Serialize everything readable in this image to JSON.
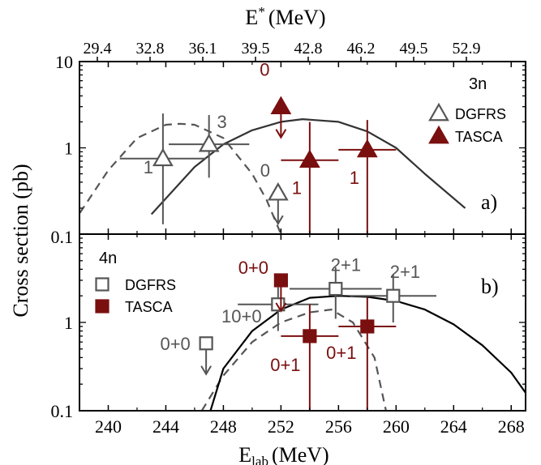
{
  "colors": {
    "axis": "#000000",
    "dgfrs": "#555555",
    "tasca": "#7a0f0f",
    "theory": "#333333",
    "theory_4n": "#000000"
  },
  "chart_data": {
    "type": "scatter",
    "log_y": true,
    "xlabel": "E",
    "xlabel_sub": "lab",
    "xlabel_unit": "(MeV)",
    "x2label": "E",
    "x2label_sup": "*",
    "x2label_unit": "(MeV)",
    "ylabel": "Cross section (pb)",
    "xlim": [
      238,
      269
    ],
    "x_ticks": [
      "240",
      "244",
      "248",
      "252",
      "256",
      "260",
      "264",
      "268"
    ],
    "x2_ticks": [
      "29.4",
      "32.8",
      "36.1",
      "39.5",
      "42.8",
      "46.2",
      "49.5",
      "52.9"
    ],
    "y_ticks": [
      "0.1",
      "1",
      "10"
    ],
    "panels": [
      {
        "tag": "a)",
        "ylim": [
          0.1,
          10
        ],
        "legend": {
          "title": "3n",
          "entries": [
            "DGFRS",
            "TASCA"
          ],
          "placement": "top-right"
        },
        "series": [
          {
            "name": "DGFRS",
            "marker": "triangle-open",
            "color": "#555555",
            "points": [
              {
                "x": 243.8,
                "y": 0.75,
                "xerr": 3.0,
                "ylow": 0.13,
                "yhigh": 2.5,
                "label": "1"
              },
              {
                "x": 247.0,
                "y": 1.1,
                "xerr": 2.8,
                "ylow": 0.45,
                "yhigh": 2.4,
                "label": "3"
              }
            ],
            "limits": [
              {
                "x": 251.8,
                "y": 0.3,
                "label": "0"
              }
            ]
          },
          {
            "name": "TASCA",
            "marker": "triangle-filled",
            "color": "#7a0f0f",
            "points": [
              {
                "x": 254.0,
                "y": 0.72,
                "xerr": 2.0,
                "ylow": 0.1,
                "yhigh": 2.0,
                "label": "1"
              },
              {
                "x": 258.0,
                "y": 0.95,
                "xerr": 2.0,
                "ylow": 0.1,
                "yhigh": 2.1,
                "label": "1"
              }
            ],
            "limits": [
              {
                "x": 252.0,
                "y": 3.0,
                "label": "0"
              }
            ]
          }
        ],
        "curves": [
          {
            "style": "dashed",
            "x": [
              237.5,
              240,
              242,
              244,
              245,
              246,
              248,
              250,
              251,
              252
            ],
            "y": [
              0.13,
              0.55,
              1.3,
              1.85,
              1.9,
              1.85,
              1.3,
              0.5,
              0.25,
              0.1
            ]
          },
          {
            "style": "solid",
            "x": [
              243,
              246,
              248,
              250,
              252,
              253.5,
              256,
              258,
              260,
              262,
              264.8
            ],
            "y": [
              0.17,
              0.6,
              1.1,
              1.6,
              2.0,
              2.15,
              2.0,
              1.55,
              1.0,
              0.5,
              0.2
            ]
          }
        ]
      },
      {
        "tag": "b)",
        "ylim": [
          0.1,
          10
        ],
        "legend": {
          "title": "4n",
          "entries": [
            "DGFRS",
            "TASCA"
          ],
          "placement": "top-left"
        },
        "series": [
          {
            "name": "DGFRS",
            "marker": "square-open",
            "color": "#555555",
            "points": [
              {
                "x": 251.8,
                "y": 1.6,
                "xerr": 2.8,
                "ylow": 0.8,
                "yhigh": 2.5,
                "label": "10+0"
              },
              {
                "x": 255.8,
                "y": 2.4,
                "xerr": 3.2,
                "ylow": 1.1,
                "yhigh": 4.2,
                "label": "2+1"
              },
              {
                "x": 259.8,
                "y": 2.0,
                "xerr": 3.0,
                "ylow": 1.0,
                "yhigh": 3.5,
                "label": "2+1"
              }
            ],
            "limits": [
              {
                "x": 246.8,
                "y": 0.58,
                "label": "0+0"
              }
            ]
          },
          {
            "name": "TASCA",
            "marker": "square-filled",
            "color": "#7a0f0f",
            "points": [
              {
                "x": 254.0,
                "y": 0.7,
                "xerr": 2.0,
                "ylow": 0.1,
                "yhigh": 1.6,
                "label": "0+1"
              },
              {
                "x": 258.0,
                "y": 0.9,
                "xerr": 2.0,
                "ylow": 0.1,
                "yhigh": 1.9,
                "label": "0+1"
              }
            ],
            "limits": [
              {
                "x": 252.0,
                "y": 3.0,
                "label": "0+0"
              }
            ]
          }
        ],
        "curves": [
          {
            "style": "dashed",
            "x": [
              246.5,
              248,
              250,
              252,
              254,
              255.5,
              257,
              258.5,
              259.3
            ],
            "y": [
              0.1,
              0.25,
              0.6,
              1.0,
              1.3,
              1.4,
              1.0,
              0.4,
              0.1
            ]
          },
          {
            "style": "solid",
            "x": [
              247.1,
              248,
              250,
              252,
              254,
              256,
              258,
              260,
              262,
              264,
              266,
              268,
              269
            ],
            "y": [
              0.1,
              0.3,
              0.8,
              1.4,
              1.9,
              2.0,
              1.95,
              1.75,
              1.4,
              0.95,
              0.55,
              0.27,
              0.16
            ]
          }
        ]
      }
    ]
  }
}
